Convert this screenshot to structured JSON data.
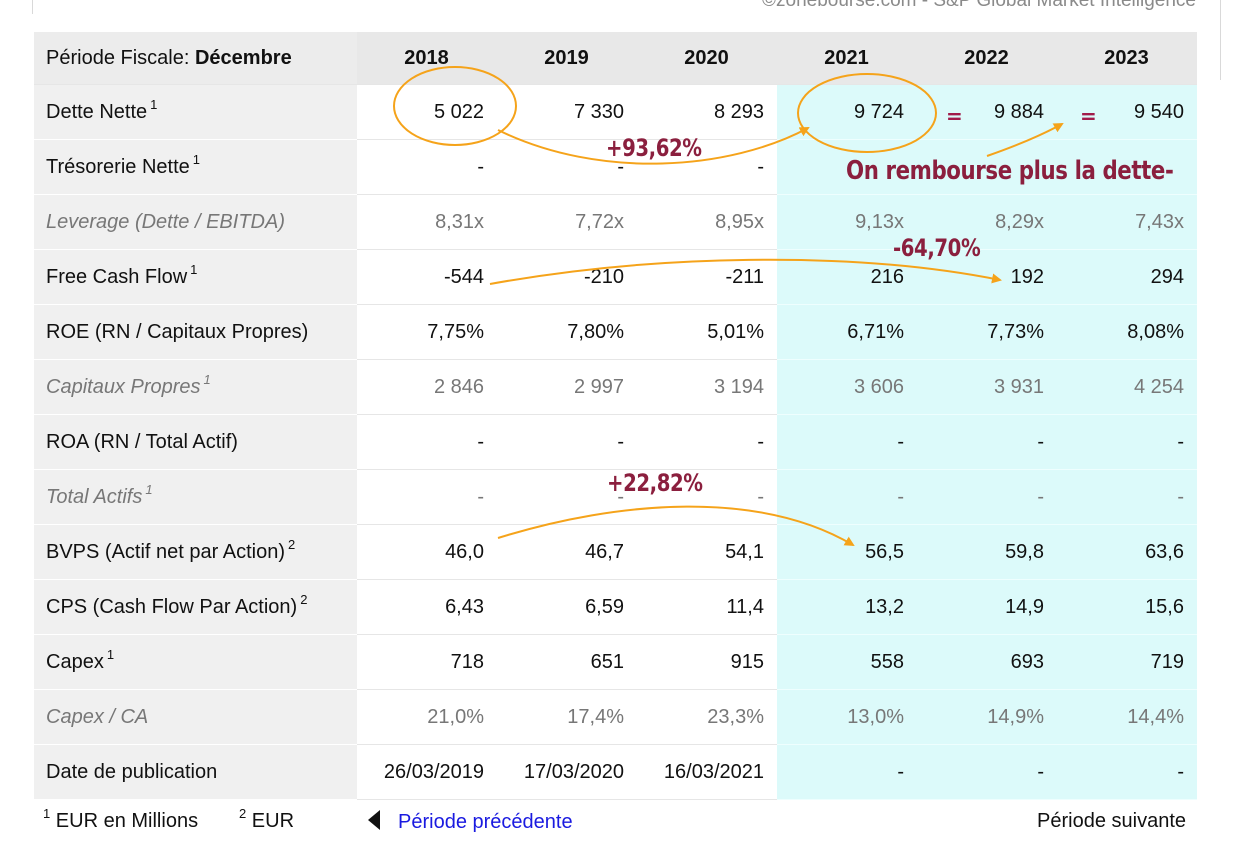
{
  "source": "©zonebourse.com - S&P Global Market Intelligence",
  "header": {
    "label_prefix": "Période Fiscale: ",
    "label_bold": "Décembre",
    "years": [
      "2018",
      "2019",
      "2020",
      "2021",
      "2022",
      "2023"
    ]
  },
  "rows": [
    {
      "label": "Dette Nette",
      "sup": "1",
      "italic": false,
      "values": [
        "5 022",
        "7 330",
        "8 293",
        "9 724",
        "9 884",
        "9 540"
      ]
    },
    {
      "label": "Trésorerie Nette",
      "sup": "1",
      "italic": false,
      "values": [
        "-",
        "-",
        "-",
        "",
        "",
        ""
      ]
    },
    {
      "label": "Leverage (Dette / EBITDA)",
      "sup": "",
      "italic": true,
      "values": [
        "8,31x",
        "7,72x",
        "8,95x",
        "9,13x",
        "8,29x",
        "7,43x"
      ]
    },
    {
      "label": "Free Cash Flow",
      "sup": "1",
      "italic": false,
      "values": [
        "-544",
        "-210",
        "-211",
        "216",
        "192",
        "294"
      ]
    },
    {
      "label": "ROE (RN / Capitaux Propres)",
      "sup": "",
      "italic": false,
      "values": [
        "7,75%",
        "7,80%",
        "5,01%",
        "6,71%",
        "7,73%",
        "8,08%"
      ]
    },
    {
      "label": "Capitaux Propres",
      "sup": "1",
      "italic": true,
      "values": [
        "2 846",
        "2 997",
        "3 194",
        "3 606",
        "3 931",
        "4 254"
      ]
    },
    {
      "label": "ROA (RN / Total Actif)",
      "sup": "",
      "italic": false,
      "values": [
        "-",
        "-",
        "-",
        "-",
        "-",
        "-"
      ]
    },
    {
      "label": "Total Actifs",
      "sup": "1",
      "italic": true,
      "values": [
        "-",
        "-",
        "-",
        "-",
        "-",
        "-"
      ]
    },
    {
      "label": "BVPS (Actif net par Action)",
      "sup": "2",
      "italic": false,
      "values": [
        "46,0",
        "46,7",
        "54,1",
        "56,5",
        "59,8",
        "63,6"
      ]
    },
    {
      "label": "CPS (Cash Flow Par Action)",
      "sup": "2",
      "italic": false,
      "values": [
        "6,43",
        "6,59",
        "11,4",
        "13,2",
        "14,9",
        "15,6"
      ]
    },
    {
      "label": "Capex",
      "sup": "1",
      "italic": false,
      "values": [
        "718",
        "651",
        "915",
        "558",
        "693",
        "719"
      ]
    },
    {
      "label": "Capex / CA",
      "sup": "",
      "italic": true,
      "values": [
        "21,0%",
        "17,4%",
        "23,3%",
        "13,0%",
        "14,9%",
        "14,4%"
      ]
    },
    {
      "label": "Date de publication",
      "sup": "",
      "italic": false,
      "values": [
        "26/03/2019",
        "17/03/2020",
        "16/03/2021",
        "-",
        "-",
        "-"
      ]
    }
  ],
  "footer": {
    "note1_sup": "1",
    "note1": "EUR en Millions",
    "note2_sup": "2",
    "note2": "EUR",
    "prev_link": "Période précédente",
    "next_link": "Période suivante"
  },
  "annotations": {
    "debt_growth": "+93,62%",
    "debt_comment": "On rembourse plus la dette-",
    "fcf_change": "-64,70%",
    "bvps_growth": "+22,82%",
    "equal_sign": "="
  },
  "colors": {
    "estimate_bg": "#dcfafa",
    "annotation_text": "#8b1f3e",
    "annotation_stroke": "#f5a31a",
    "link": "#1a1ae0"
  }
}
